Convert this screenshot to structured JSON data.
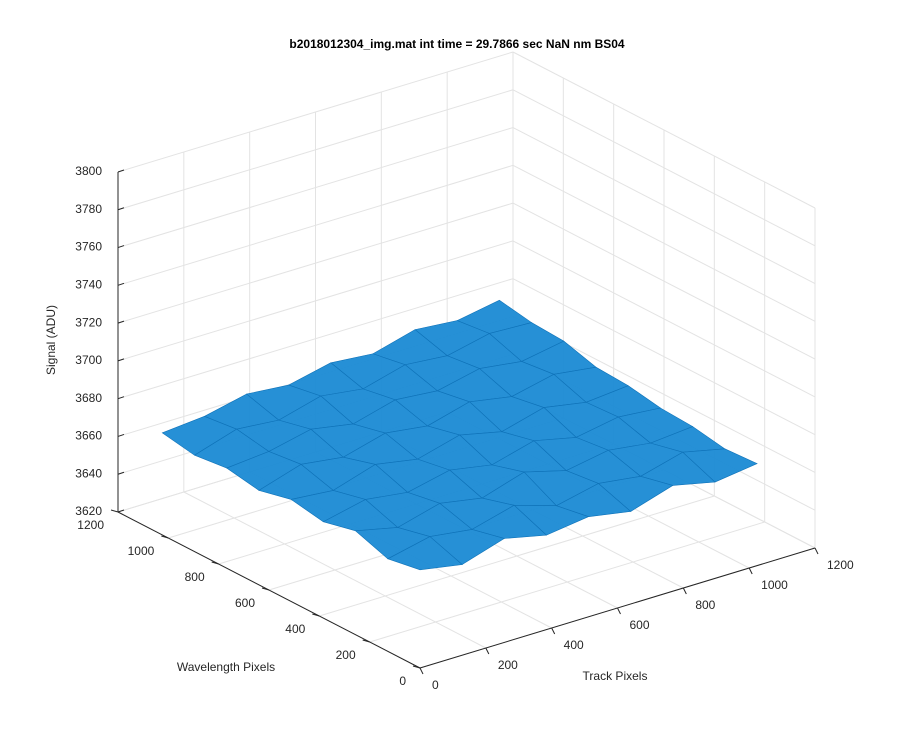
{
  "chart_data": {
    "type": "surface",
    "title": "b2018012304_img.mat int time = 29.7866 sec  NaN nm BS04",
    "x_label": "Track Pixels",
    "y_label": "Wavelength Pixels",
    "z_label": "Signal (ADU)",
    "x": [
      0,
      128,
      256,
      384,
      512,
      640,
      768,
      896,
      1024
    ],
    "y": [
      0,
      128,
      256,
      384,
      512,
      640,
      768,
      896,
      1024
    ],
    "z": [
      [
        3672,
        3668,
        3675,
        3670,
        3673,
        3669,
        3676,
        3671,
        3674
      ],
      [
        3669,
        3674,
        3671,
        3677,
        3670,
        3675,
        3672,
        3678,
        3673
      ],
      [
        3675,
        3670,
        3676,
        3672,
        3679,
        3673,
        3677,
        3674,
        3676
      ],
      [
        3671,
        3676,
        3673,
        3678,
        3674,
        3680,
        3675,
        3679,
        3677
      ],
      [
        3674,
        3672,
        3679,
        3675,
        3681,
        3676,
        3682,
        3678,
        3680
      ],
      [
        3670,
        3677,
        3674,
        3680,
        3677,
        3683,
        3679,
        3684,
        3681
      ],
      [
        3673,
        3675,
        3680,
        3676,
        3682,
        3680,
        3685,
        3682,
        3686
      ],
      [
        3671,
        3678,
        3676,
        3682,
        3679,
        3685,
        3683,
        3688,
        3687
      ],
      [
        3674,
        3676,
        3681,
        3679,
        3684,
        3682,
        3688,
        3686,
        3690
      ]
    ],
    "color": "#1a8ad4",
    "xlim": [
      0,
      1200
    ],
    "xticks": [
      0,
      200,
      400,
      600,
      800,
      1000,
      1200
    ],
    "ylim": [
      0,
      1200
    ],
    "yticks": [
      0,
      200,
      400,
      600,
      800,
      1000,
      1200
    ],
    "zlim": [
      3620,
      3800
    ],
    "zticks": [
      3620,
      3640,
      3660,
      3680,
      3700,
      3720,
      3740,
      3760,
      3780,
      3800
    ],
    "grid": true
  }
}
